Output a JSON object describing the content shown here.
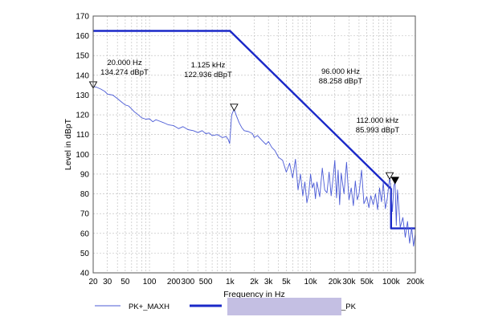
{
  "chart_data": {
    "type": "line",
    "xscale": "log",
    "xlim": [
      20,
      200000
    ],
    "ylim": [
      40,
      170
    ],
    "xlabel": "Frequency in Hz",
    "ylabel": "Level in dBpT",
    "x_ticks": [
      20,
      30,
      50,
      100,
      200,
      300,
      500,
      1000,
      2000,
      3000,
      5000,
      10000,
      20000,
      30000,
      50000,
      100000,
      200000
    ],
    "x_tick_labels": [
      "20",
      "30",
      "50",
      "100",
      "200",
      "300",
      "500",
      "1k",
      "2k",
      "3k",
      "5k",
      "10k",
      "20k",
      "30k",
      "50k",
      "100k",
      "200k"
    ],
    "y_ticks": [
      40,
      50,
      60,
      70,
      80,
      90,
      100,
      110,
      120,
      130,
      140,
      150,
      160,
      170
    ],
    "y_tick_labels": [
      "40",
      "50",
      "60",
      "70",
      "80",
      "90",
      "100",
      "110",
      "120",
      "130",
      "140",
      "150",
      "160",
      "170"
    ],
    "grid": "dashed",
    "colors": {
      "measurement": "#4b5bd6",
      "limit": "#1a28c8",
      "legend_box": "#c4bfe3"
    },
    "series": [
      {
        "name": "PK+_MAXH",
        "style": "thin",
        "x": [
          20,
          22,
          25,
          28,
          30,
          35,
          40,
          45,
          50,
          55,
          60,
          65,
          70,
          75,
          80,
          90,
          100,
          110,
          120,
          130,
          150,
          170,
          200,
          230,
          260,
          300,
          350,
          400,
          450,
          500,
          550,
          600,
          700,
          800,
          900,
          950,
          990,
          1000,
          1050,
          1125,
          1200,
          1300,
          1400,
          1500,
          1700,
          1900,
          2000,
          2200,
          2500,
          2800,
          3000,
          3300,
          3600,
          4000,
          4500,
          5000,
          5500,
          6000,
          6500,
          7000,
          7500,
          8000,
          8500,
          9000,
          9500,
          10000,
          10500,
          11000,
          11500,
          12000,
          13000,
          14000,
          15000,
          16000,
          17000,
          18000,
          19000,
          20000,
          21000,
          22000,
          23000,
          24000,
          26000,
          28000,
          30000,
          32000,
          34000,
          36000,
          38000,
          40000,
          43000,
          46000,
          50000,
          53000,
          56000,
          60000,
          64000,
          68000,
          72000,
          76000,
          80000,
          85000,
          90000,
          96000,
          100000,
          104000,
          108000,
          112000,
          116000,
          120000,
          125000,
          130000,
          140000,
          150000,
          160000,
          170000,
          180000,
          190000,
          200000
        ],
        "values": [
          134.3,
          134.0,
          133.0,
          131.8,
          130.5,
          130.0,
          128.2,
          126.5,
          125.0,
          124.5,
          123.0,
          121.5,
          120.5,
          119.5,
          118.5,
          117.8,
          118.0,
          116.5,
          117.5,
          117.0,
          116.0,
          115.0,
          114.5,
          113.0,
          114.0,
          112.5,
          112.0,
          111.0,
          112.0,
          110.5,
          110.8,
          109.5,
          110.0,
          108.5,
          109.0,
          107.5,
          105.5,
          108.0,
          120.0,
          122.9,
          119.5,
          116.0,
          113.5,
          112.0,
          111.5,
          110.5,
          108.5,
          109.5,
          107.0,
          105.0,
          106.5,
          103.5,
          102.0,
          98.5,
          97.0,
          91.0,
          95.5,
          88.0,
          97.5,
          82.0,
          90.0,
          79.0,
          86.0,
          75.5,
          80.0,
          90.0,
          83.0,
          85.5,
          77.5,
          86.0,
          78.5,
          93.0,
          82.0,
          80.5,
          91.0,
          79.0,
          87.5,
          97.0,
          78.0,
          92.0,
          74.5,
          90.5,
          80.0,
          96.0,
          77.0,
          83.0,
          74.0,
          86.5,
          77.0,
          80.0,
          92.0,
          75.0,
          78.5,
          73.0,
          79.0,
          74.5,
          80.0,
          72.0,
          83.0,
          76.0,
          86.0,
          72.5,
          78.0,
          88.3,
          82.0,
          71.0,
          84.0,
          86.0,
          64.0,
          82.0,
          73.0,
          63.0,
          68.0,
          58.0,
          66.0,
          55.0,
          63.0,
          53.5,
          60.0
        ]
      },
      {
        "name": "_PK",
        "style": "thick",
        "x": [
          20,
          1000,
          100000,
          100000,
          200000
        ],
        "values": [
          162.5,
          162.5,
          82.5,
          62.5,
          62.5
        ]
      }
    ],
    "markers": [
      {
        "x": 20,
        "y": 134.274,
        "filled": false
      },
      {
        "x": 1125,
        "y": 122.936,
        "filled": false
      },
      {
        "x": 96000,
        "y": 88.258,
        "filled": false
      },
      {
        "x": 112000,
        "y": 85.993,
        "filled": true
      }
    ],
    "annotations": [
      {
        "line1": "20.000 Hz",
        "line2": "134.274 dBpT"
      },
      {
        "line1": "1.125 kHz",
        "line2": "122.936 dBpT"
      },
      {
        "line1": "96.000 kHz",
        "line2": "88.258 dBpT"
      },
      {
        "line1": "112.000 kHz",
        "line2": "85.993 dBpT"
      }
    ],
    "legend": [
      {
        "label": "PK+_MAXH",
        "style": "thin"
      },
      {
        "label": "_PK",
        "style": "thick"
      }
    ]
  }
}
